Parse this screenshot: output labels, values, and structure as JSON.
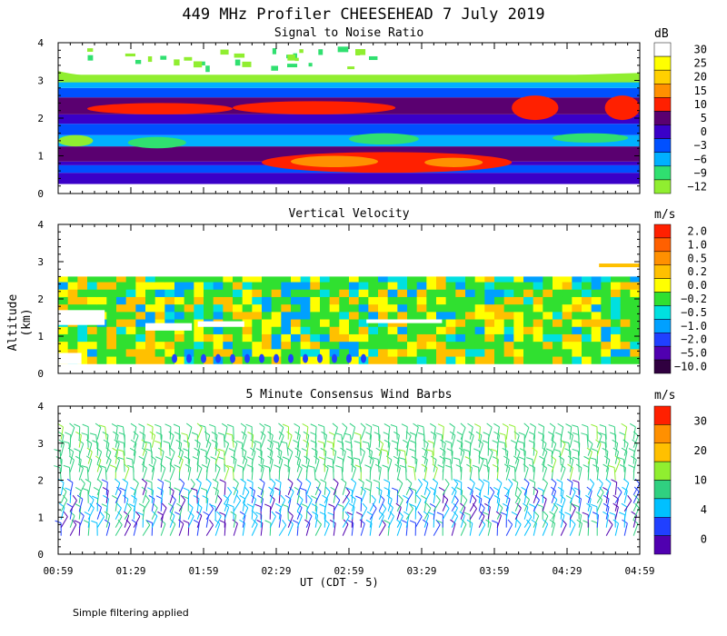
{
  "title": "449 MHz Profiler CHEESEHEAD  7 July 2019",
  "y_axis_title": "Altitude (km)",
  "x_axis_title": "UT  (CDT - 5)",
  "footnote": "Simple filtering applied",
  "x_ticks": [
    "00:59",
    "01:29",
    "01:59",
    "02:29",
    "02:59",
    "03:29",
    "03:59",
    "04:29",
    "04:59"
  ],
  "y_ticks": [
    "0",
    "1",
    "2",
    "3",
    "4"
  ],
  "chart_data": [
    {
      "type": "heatmap",
      "title": "Signal to Noise Ratio",
      "unit": "dB",
      "ylim": [
        0,
        4
      ],
      "colorbar": {
        "labels": [
          "30",
          "25",
          "20",
          "15",
          "10",
          "5",
          "0",
          "−3",
          "−6",
          "−9",
          "−12"
        ],
        "colors": [
          "#ffffff",
          "#ffff00",
          "#ffd000",
          "#ff9000",
          "#ff2000",
          "#5a0070",
          "#3a00c8",
          "#0050ff",
          "#00b0ff",
          "#30e070",
          "#90ee30"
        ]
      },
      "layers": [
        {
          "ymin": 0.25,
          "ymax": 0.55,
          "color": "#3a00c8"
        },
        {
          "ymin": 0.55,
          "ymax": 0.75,
          "color": "#0050ff"
        },
        {
          "ymin": 0.75,
          "ymax": 0.85,
          "color": "#3a00c8"
        },
        {
          "ymin": 0.85,
          "ymax": 1.25,
          "color": "#5a0070"
        },
        {
          "ymin": 1.25,
          "ymax": 1.55,
          "color": "#00b0ff"
        },
        {
          "ymin": 1.55,
          "ymax": 1.85,
          "color": "#0050ff"
        },
        {
          "ymin": 1.85,
          "ymax": 2.1,
          "color": "#3a00c8"
        },
        {
          "ymin": 2.1,
          "ymax": 2.55,
          "color": "#5a0070"
        },
        {
          "ymin": 2.55,
          "ymax": 2.8,
          "color": "#0050ff"
        },
        {
          "ymin": 2.8,
          "ymax": 2.95,
          "color": "#00b0ff"
        },
        {
          "ymin": 2.95,
          "ymax": 3.15,
          "color": "#90ee30"
        }
      ],
      "blobs": [
        {
          "x0": 0.05,
          "x1": 0.3,
          "ymin": 2.1,
          "ymax": 2.4,
          "color": "#ff2000"
        },
        {
          "x0": 0.3,
          "x1": 0.58,
          "ymin": 2.1,
          "ymax": 2.45,
          "color": "#ff2000"
        },
        {
          "x0": 0.78,
          "x1": 0.86,
          "ymin": 1.95,
          "ymax": 2.6,
          "color": "#ff2000"
        },
        {
          "x0": 0.94,
          "x1": 1.0,
          "ymin": 1.95,
          "ymax": 2.6,
          "color": "#ff2000"
        },
        {
          "x0": 0.35,
          "x1": 0.78,
          "ymin": 0.55,
          "ymax": 1.1,
          "color": "#ff2000"
        },
        {
          "x0": 0.4,
          "x1": 0.55,
          "ymin": 0.7,
          "ymax": 1.0,
          "color": "#ff9000"
        },
        {
          "x0": 0.63,
          "x1": 0.73,
          "ymin": 0.7,
          "ymax": 0.95,
          "color": "#ff9000"
        },
        {
          "x0": 0.0,
          "x1": 0.06,
          "ymin": 1.25,
          "ymax": 1.55,
          "color": "#90ee30"
        },
        {
          "x0": 0.12,
          "x1": 0.22,
          "ymin": 1.2,
          "ymax": 1.5,
          "color": "#30e070"
        },
        {
          "x0": 0.5,
          "x1": 0.62,
          "ymin": 1.3,
          "ymax": 1.6,
          "color": "#30e070"
        },
        {
          "x0": 0.85,
          "x1": 0.98,
          "ymin": 1.35,
          "ymax": 1.6,
          "color": "#30e070"
        }
      ]
    },
    {
      "type": "heatmap",
      "title": "Vertical Velocity",
      "unit": "m/s",
      "ylim": [
        0,
        4
      ],
      "colorbar": {
        "labels": [
          "2.0",
          "1.0",
          "0.5",
          "0.2",
          "0.0",
          "−0.2",
          "−0.5",
          "−1.0",
          "−2.0",
          "−5.0",
          "−10.0"
        ],
        "colors": [
          "#ff2000",
          "#ff6000",
          "#ff9000",
          "#ffc000",
          "#ffff00",
          "#30e030",
          "#00e0e0",
          "#00a0ff",
          "#2040ff",
          "#5000b0",
          "#300040"
        ]
      },
      "ymin": 0.25,
      "ymax": 2.85,
      "gaps": [
        {
          "x0": 0.0,
          "x1": 0.08,
          "ymin": 1.3,
          "ymax": 1.7
        },
        {
          "x0": 0.15,
          "x1": 0.23,
          "ymin": 1.15,
          "ymax": 1.35
        },
        {
          "x0": 0.24,
          "x1": 0.32,
          "ymin": 1.25,
          "ymax": 1.4
        },
        {
          "x0": 0.53,
          "x1": 0.66,
          "ymin": 1.35,
          "ymax": 1.45
        },
        {
          "x0": 0.0,
          "x1": 0.04,
          "ymin": 0.25,
          "ymax": 0.55
        },
        {
          "x0": 0.0,
          "x1": 1.0,
          "ymin": 2.6,
          "ymax": 2.9
        }
      ]
    },
    {
      "type": "wind_barbs",
      "title": "5 Minute Consensus Wind Barbs",
      "unit": "m/s",
      "ylim": [
        0,
        4
      ],
      "colorbar": {
        "labels": [
          "30",
          "20",
          "10",
          "4",
          "0"
        ],
        "colors": [
          "#ff2000",
          "#ff9000",
          "#ffc000",
          "#90ee30",
          "#30d080",
          "#00c0ff",
          "#2040ff",
          "#5000b0"
        ]
      },
      "upper_layer": {
        "ymin": 2.0,
        "ymax": 3.3,
        "color": "#30d080"
      },
      "lower_layer": {
        "ymin": 0.5,
        "ymax": 1.7,
        "color": "#00c0ff"
      }
    }
  ]
}
